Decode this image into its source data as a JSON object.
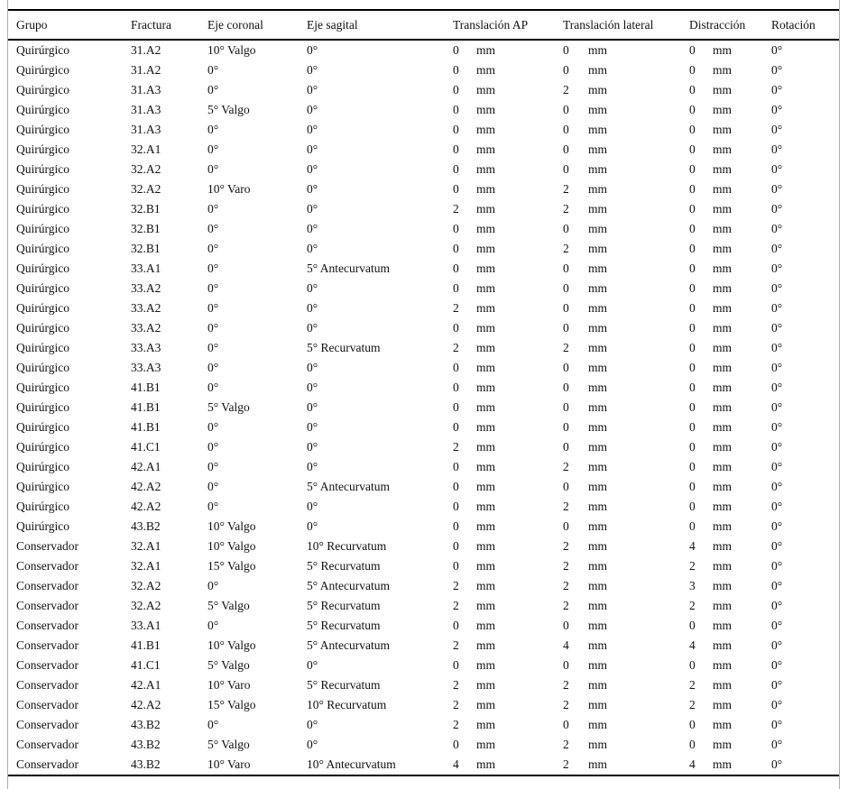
{
  "table": {
    "columns": [
      "Grupo",
      "Fractura",
      "Eje coronal",
      "Eje sagital",
      "Translación AP",
      "Translación lateral",
      "Distracción",
      "Rotación"
    ],
    "unit": "mm",
    "rows": [
      {
        "grupo": "Quirúrgico",
        "fractura": "31.A2",
        "eje_coronal": "10° Valgo",
        "eje_sagital": "0°",
        "translacion_ap": 0,
        "translacion_lateral": 0,
        "distraccion": 0,
        "rotacion": "0°"
      },
      {
        "grupo": "Quirúrgico",
        "fractura": "31.A2",
        "eje_coronal": "0°",
        "eje_sagital": "0°",
        "translacion_ap": 0,
        "translacion_lateral": 0,
        "distraccion": 0,
        "rotacion": "0°"
      },
      {
        "grupo": "Quirúrgico",
        "fractura": "31.A3",
        "eje_coronal": "0°",
        "eje_sagital": "0°",
        "translacion_ap": 0,
        "translacion_lateral": 2,
        "distraccion": 0,
        "rotacion": "0°"
      },
      {
        "grupo": "Quirúrgico",
        "fractura": "31.A3",
        "eje_coronal": "5° Valgo",
        "eje_sagital": "0°",
        "translacion_ap": 0,
        "translacion_lateral": 0,
        "distraccion": 0,
        "rotacion": "0°"
      },
      {
        "grupo": "Quirúrgico",
        "fractura": "31.A3",
        "eje_coronal": "0°",
        "eje_sagital": "0°",
        "translacion_ap": 0,
        "translacion_lateral": 0,
        "distraccion": 0,
        "rotacion": "0°"
      },
      {
        "grupo": "Quirúrgico",
        "fractura": "32.A1",
        "eje_coronal": "0°",
        "eje_sagital": "0°",
        "translacion_ap": 0,
        "translacion_lateral": 0,
        "distraccion": 0,
        "rotacion": "0°"
      },
      {
        "grupo": "Quirúrgico",
        "fractura": "32.A2",
        "eje_coronal": "0°",
        "eje_sagital": "0°",
        "translacion_ap": 0,
        "translacion_lateral": 0,
        "distraccion": 0,
        "rotacion": "0°"
      },
      {
        "grupo": "Quirúrgico",
        "fractura": "32.A2",
        "eje_coronal": "10° Varo",
        "eje_sagital": "0°",
        "translacion_ap": 0,
        "translacion_lateral": 2,
        "distraccion": 0,
        "rotacion": "0°"
      },
      {
        "grupo": "Quirúrgico",
        "fractura": "32.B1",
        "eje_coronal": "0°",
        "eje_sagital": "0°",
        "translacion_ap": 2,
        "translacion_lateral": 2,
        "distraccion": 0,
        "rotacion": "0°"
      },
      {
        "grupo": "Quirúrgico",
        "fractura": "32.B1",
        "eje_coronal": "0°",
        "eje_sagital": "0°",
        "translacion_ap": 0,
        "translacion_lateral": 0,
        "distraccion": 0,
        "rotacion": "0°"
      },
      {
        "grupo": "Quirúrgico",
        "fractura": "32.B1",
        "eje_coronal": "0°",
        "eje_sagital": "0°",
        "translacion_ap": 0,
        "translacion_lateral": 2,
        "distraccion": 0,
        "rotacion": "0°"
      },
      {
        "grupo": "Quirúrgico",
        "fractura": "33.A1",
        "eje_coronal": "0°",
        "eje_sagital": "5° Antecurvatum",
        "translacion_ap": 0,
        "translacion_lateral": 0,
        "distraccion": 0,
        "rotacion": "0°"
      },
      {
        "grupo": "Quirúrgico",
        "fractura": "33.A2",
        "eje_coronal": "0°",
        "eje_sagital": "0°",
        "translacion_ap": 0,
        "translacion_lateral": 0,
        "distraccion": 0,
        "rotacion": "0°"
      },
      {
        "grupo": "Quirúrgico",
        "fractura": "33.A2",
        "eje_coronal": "0°",
        "eje_sagital": "0°",
        "translacion_ap": 2,
        "translacion_lateral": 0,
        "distraccion": 0,
        "rotacion": "0°"
      },
      {
        "grupo": "Quirúrgico",
        "fractura": "33.A2",
        "eje_coronal": "0°",
        "eje_sagital": "0°",
        "translacion_ap": 0,
        "translacion_lateral": 0,
        "distraccion": 0,
        "rotacion": "0°"
      },
      {
        "grupo": "Quirúrgico",
        "fractura": "33.A3",
        "eje_coronal": "0°",
        "eje_sagital": "5° Recurvatum",
        "translacion_ap": 2,
        "translacion_lateral": 2,
        "distraccion": 0,
        "rotacion": "0°"
      },
      {
        "grupo": "Quirúrgico",
        "fractura": "33.A3",
        "eje_coronal": "0°",
        "eje_sagital": "0°",
        "translacion_ap": 0,
        "translacion_lateral": 0,
        "distraccion": 0,
        "rotacion": "0°"
      },
      {
        "grupo": "Quirúrgico",
        "fractura": "41.B1",
        "eje_coronal": "0°",
        "eje_sagital": "0°",
        "translacion_ap": 0,
        "translacion_lateral": 0,
        "distraccion": 0,
        "rotacion": "0°"
      },
      {
        "grupo": "Quirúrgico",
        "fractura": "41.B1",
        "eje_coronal": "5° Valgo",
        "eje_sagital": "0°",
        "translacion_ap": 0,
        "translacion_lateral": 0,
        "distraccion": 0,
        "rotacion": "0°"
      },
      {
        "grupo": "Quirúrgico",
        "fractura": "41.B1",
        "eje_coronal": "0°",
        "eje_sagital": "0°",
        "translacion_ap": 0,
        "translacion_lateral": 0,
        "distraccion": 0,
        "rotacion": "0°"
      },
      {
        "grupo": "Quirúrgico",
        "fractura": "41.C1",
        "eje_coronal": "0°",
        "eje_sagital": "0°",
        "translacion_ap": 2,
        "translacion_lateral": 0,
        "distraccion": 0,
        "rotacion": "0°"
      },
      {
        "grupo": "Quirúrgico",
        "fractura": "42.A1",
        "eje_coronal": "0°",
        "eje_sagital": "0°",
        "translacion_ap": 0,
        "translacion_lateral": 2,
        "distraccion": 0,
        "rotacion": "0°"
      },
      {
        "grupo": "Quirúrgico",
        "fractura": "42.A2",
        "eje_coronal": "0°",
        "eje_sagital": "5° Antecurvatum",
        "translacion_ap": 0,
        "translacion_lateral": 0,
        "distraccion": 0,
        "rotacion": "0°"
      },
      {
        "grupo": "Quirúrgico",
        "fractura": "42.A2",
        "eje_coronal": "0°",
        "eje_sagital": "0°",
        "translacion_ap": 0,
        "translacion_lateral": 2,
        "distraccion": 0,
        "rotacion": "0°"
      },
      {
        "grupo": "Quirúrgico",
        "fractura": "43.B2",
        "eje_coronal": "10° Valgo",
        "eje_sagital": "0°",
        "translacion_ap": 0,
        "translacion_lateral": 0,
        "distraccion": 0,
        "rotacion": "0°"
      },
      {
        "grupo": "Conservador",
        "fractura": "32.A1",
        "eje_coronal": "10° Valgo",
        "eje_sagital": "10° Recurvatum",
        "translacion_ap": 0,
        "translacion_lateral": 2,
        "distraccion": 4,
        "rotacion": "0°"
      },
      {
        "grupo": "Conservador",
        "fractura": "32.A1",
        "eje_coronal": "15° Valgo",
        "eje_sagital": "5° Recurvatum",
        "translacion_ap": 0,
        "translacion_lateral": 2,
        "distraccion": 2,
        "rotacion": "0°"
      },
      {
        "grupo": "Conservador",
        "fractura": "32.A2",
        "eje_coronal": "0°",
        "eje_sagital": "5° Antecurvatum",
        "translacion_ap": 2,
        "translacion_lateral": 2,
        "distraccion": 3,
        "rotacion": "0°"
      },
      {
        "grupo": "Conservador",
        "fractura": "32.A2",
        "eje_coronal": "5° Valgo",
        "eje_sagital": "5° Recurvatum",
        "translacion_ap": 2,
        "translacion_lateral": 2,
        "distraccion": 2,
        "rotacion": "0°"
      },
      {
        "grupo": "Conservador",
        "fractura": "33.A1",
        "eje_coronal": "0°",
        "eje_sagital": "5° Recurvatum",
        "translacion_ap": 0,
        "translacion_lateral": 0,
        "distraccion": 0,
        "rotacion": "0°"
      },
      {
        "grupo": "Conservador",
        "fractura": "41.B1",
        "eje_coronal": "10° Valgo",
        "eje_sagital": "5° Antecurvatum",
        "translacion_ap": 2,
        "translacion_lateral": 4,
        "distraccion": 4,
        "rotacion": "0°"
      },
      {
        "grupo": "Conservador",
        "fractura": "41.C1",
        "eje_coronal": "5° Valgo",
        "eje_sagital": "0°",
        "translacion_ap": 0,
        "translacion_lateral": 0,
        "distraccion": 0,
        "rotacion": "0°"
      },
      {
        "grupo": "Conservador",
        "fractura": "42.A1",
        "eje_coronal": "10° Varo",
        "eje_sagital": "5° Recurvatum",
        "translacion_ap": 2,
        "translacion_lateral": 2,
        "distraccion": 2,
        "rotacion": "0°"
      },
      {
        "grupo": "Conservador",
        "fractura": "42.A2",
        "eje_coronal": "15° Valgo",
        "eje_sagital": "10° Recurvatum",
        "translacion_ap": 2,
        "translacion_lateral": 2,
        "distraccion": 2,
        "rotacion": "0°"
      },
      {
        "grupo": "Conservador",
        "fractura": "43.B2",
        "eje_coronal": "0°",
        "eje_sagital": "0°",
        "translacion_ap": 2,
        "translacion_lateral": 0,
        "distraccion": 0,
        "rotacion": "0°"
      },
      {
        "grupo": "Conservador",
        "fractura": "43.B2",
        "eje_coronal": "5° Valgo",
        "eje_sagital": "0°",
        "translacion_ap": 0,
        "translacion_lateral": 2,
        "distraccion": 0,
        "rotacion": "0°"
      },
      {
        "grupo": "Conservador",
        "fractura": "43.B2",
        "eje_coronal": "10° Varo",
        "eje_sagital": "10° Antecurvatum",
        "translacion_ap": 4,
        "translacion_lateral": 2,
        "distraccion": 4,
        "rotacion": "0°"
      }
    ]
  }
}
